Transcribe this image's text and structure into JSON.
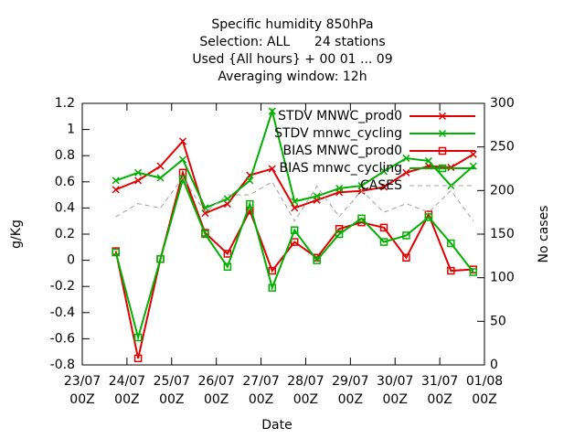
{
  "chart_data": {
    "type": "line",
    "title": [
      "Specific humidity 850hPa",
      "Selection: ALL      24 stations",
      "Used {All hours} + 00 01 ... 09",
      "Averaging window: 12h"
    ],
    "xlabel": "Date",
    "ylabel": "g/Kg",
    "y2label": "No cases",
    "x": [
      0.75,
      1.25,
      1.75,
      2.25,
      2.75,
      3.25,
      3.75,
      4.25,
      4.75,
      5.25,
      5.75,
      6.25,
      6.75,
      7.25,
      7.75,
      8.25,
      8.75
    ],
    "xlim": [
      0,
      9
    ],
    "xticks": [
      {
        "value": 0,
        "label": "23/07\n00Z"
      },
      {
        "value": 1,
        "label": "24/07\n00Z"
      },
      {
        "value": 2,
        "label": "25/07\n00Z"
      },
      {
        "value": 3,
        "label": "26/07\n00Z"
      },
      {
        "value": 4,
        "label": "27/07\n00Z"
      },
      {
        "value": 5,
        "label": "28/07\n00Z"
      },
      {
        "value": 6,
        "label": "29/07\n00Z"
      },
      {
        "value": 7,
        "label": "30/07\n00Z"
      },
      {
        "value": 8,
        "label": "31/07\n00Z"
      },
      {
        "value": 9,
        "label": "01/08\n00Z"
      }
    ],
    "ylim": [
      -0.8,
      1.2
    ],
    "yticks": [
      -0.8,
      -0.6,
      -0.4,
      -0.2,
      0,
      0.2,
      0.4,
      0.6,
      0.8,
      1,
      1.2
    ],
    "y2lim": [
      0,
      300
    ],
    "y2ticks": [
      0,
      50,
      100,
      150,
      200,
      250,
      300
    ],
    "legend": "upper right",
    "series": [
      {
        "name": "STDV MNWC_prod0",
        "color": "#e00000",
        "marker": "cross",
        "values": [
          0.54,
          0.61,
          0.72,
          0.91,
          0.36,
          0.43,
          0.65,
          0.7,
          0.4,
          0.46,
          0.52,
          0.53,
          0.56,
          0.67,
          0.72,
          0.71,
          0.81
        ]
      },
      {
        "name": "STDV mnwc_cycling",
        "color": "#00b000",
        "marker": "cross",
        "values": [
          0.61,
          0.67,
          0.63,
          0.77,
          0.4,
          0.47,
          0.61,
          1.14,
          0.45,
          0.49,
          0.55,
          0.57,
          0.68,
          0.78,
          0.76,
          0.57,
          0.72
        ]
      },
      {
        "name": "BIAS MNWC_prod0",
        "color": "#e00000",
        "marker": "square",
        "values": [
          0.07,
          -0.75,
          0.01,
          0.67,
          0.21,
          0.05,
          0.38,
          -0.08,
          0.14,
          0.02,
          0.24,
          0.29,
          0.25,
          0.02,
          0.35,
          -0.08,
          -0.07
        ]
      },
      {
        "name": "BIAS mnwc_cycling",
        "color": "#00b000",
        "marker": "square",
        "values": [
          0.06,
          -0.59,
          0.01,
          0.62,
          0.2,
          -0.05,
          0.43,
          -0.21,
          0.23,
          0.0,
          0.2,
          0.32,
          0.14,
          0.19,
          0.33,
          0.13,
          -0.09
        ]
      },
      {
        "name": "CASES",
        "color": "#a0a0a0",
        "marker": "none",
        "dashed": true,
        "axis": "y2",
        "values": [
          170,
          185,
          180,
          215,
          175,
          195,
          195,
          210,
          165,
          205,
          170,
          200,
          175,
          185,
          175,
          200,
          165
        ]
      }
    ]
  }
}
